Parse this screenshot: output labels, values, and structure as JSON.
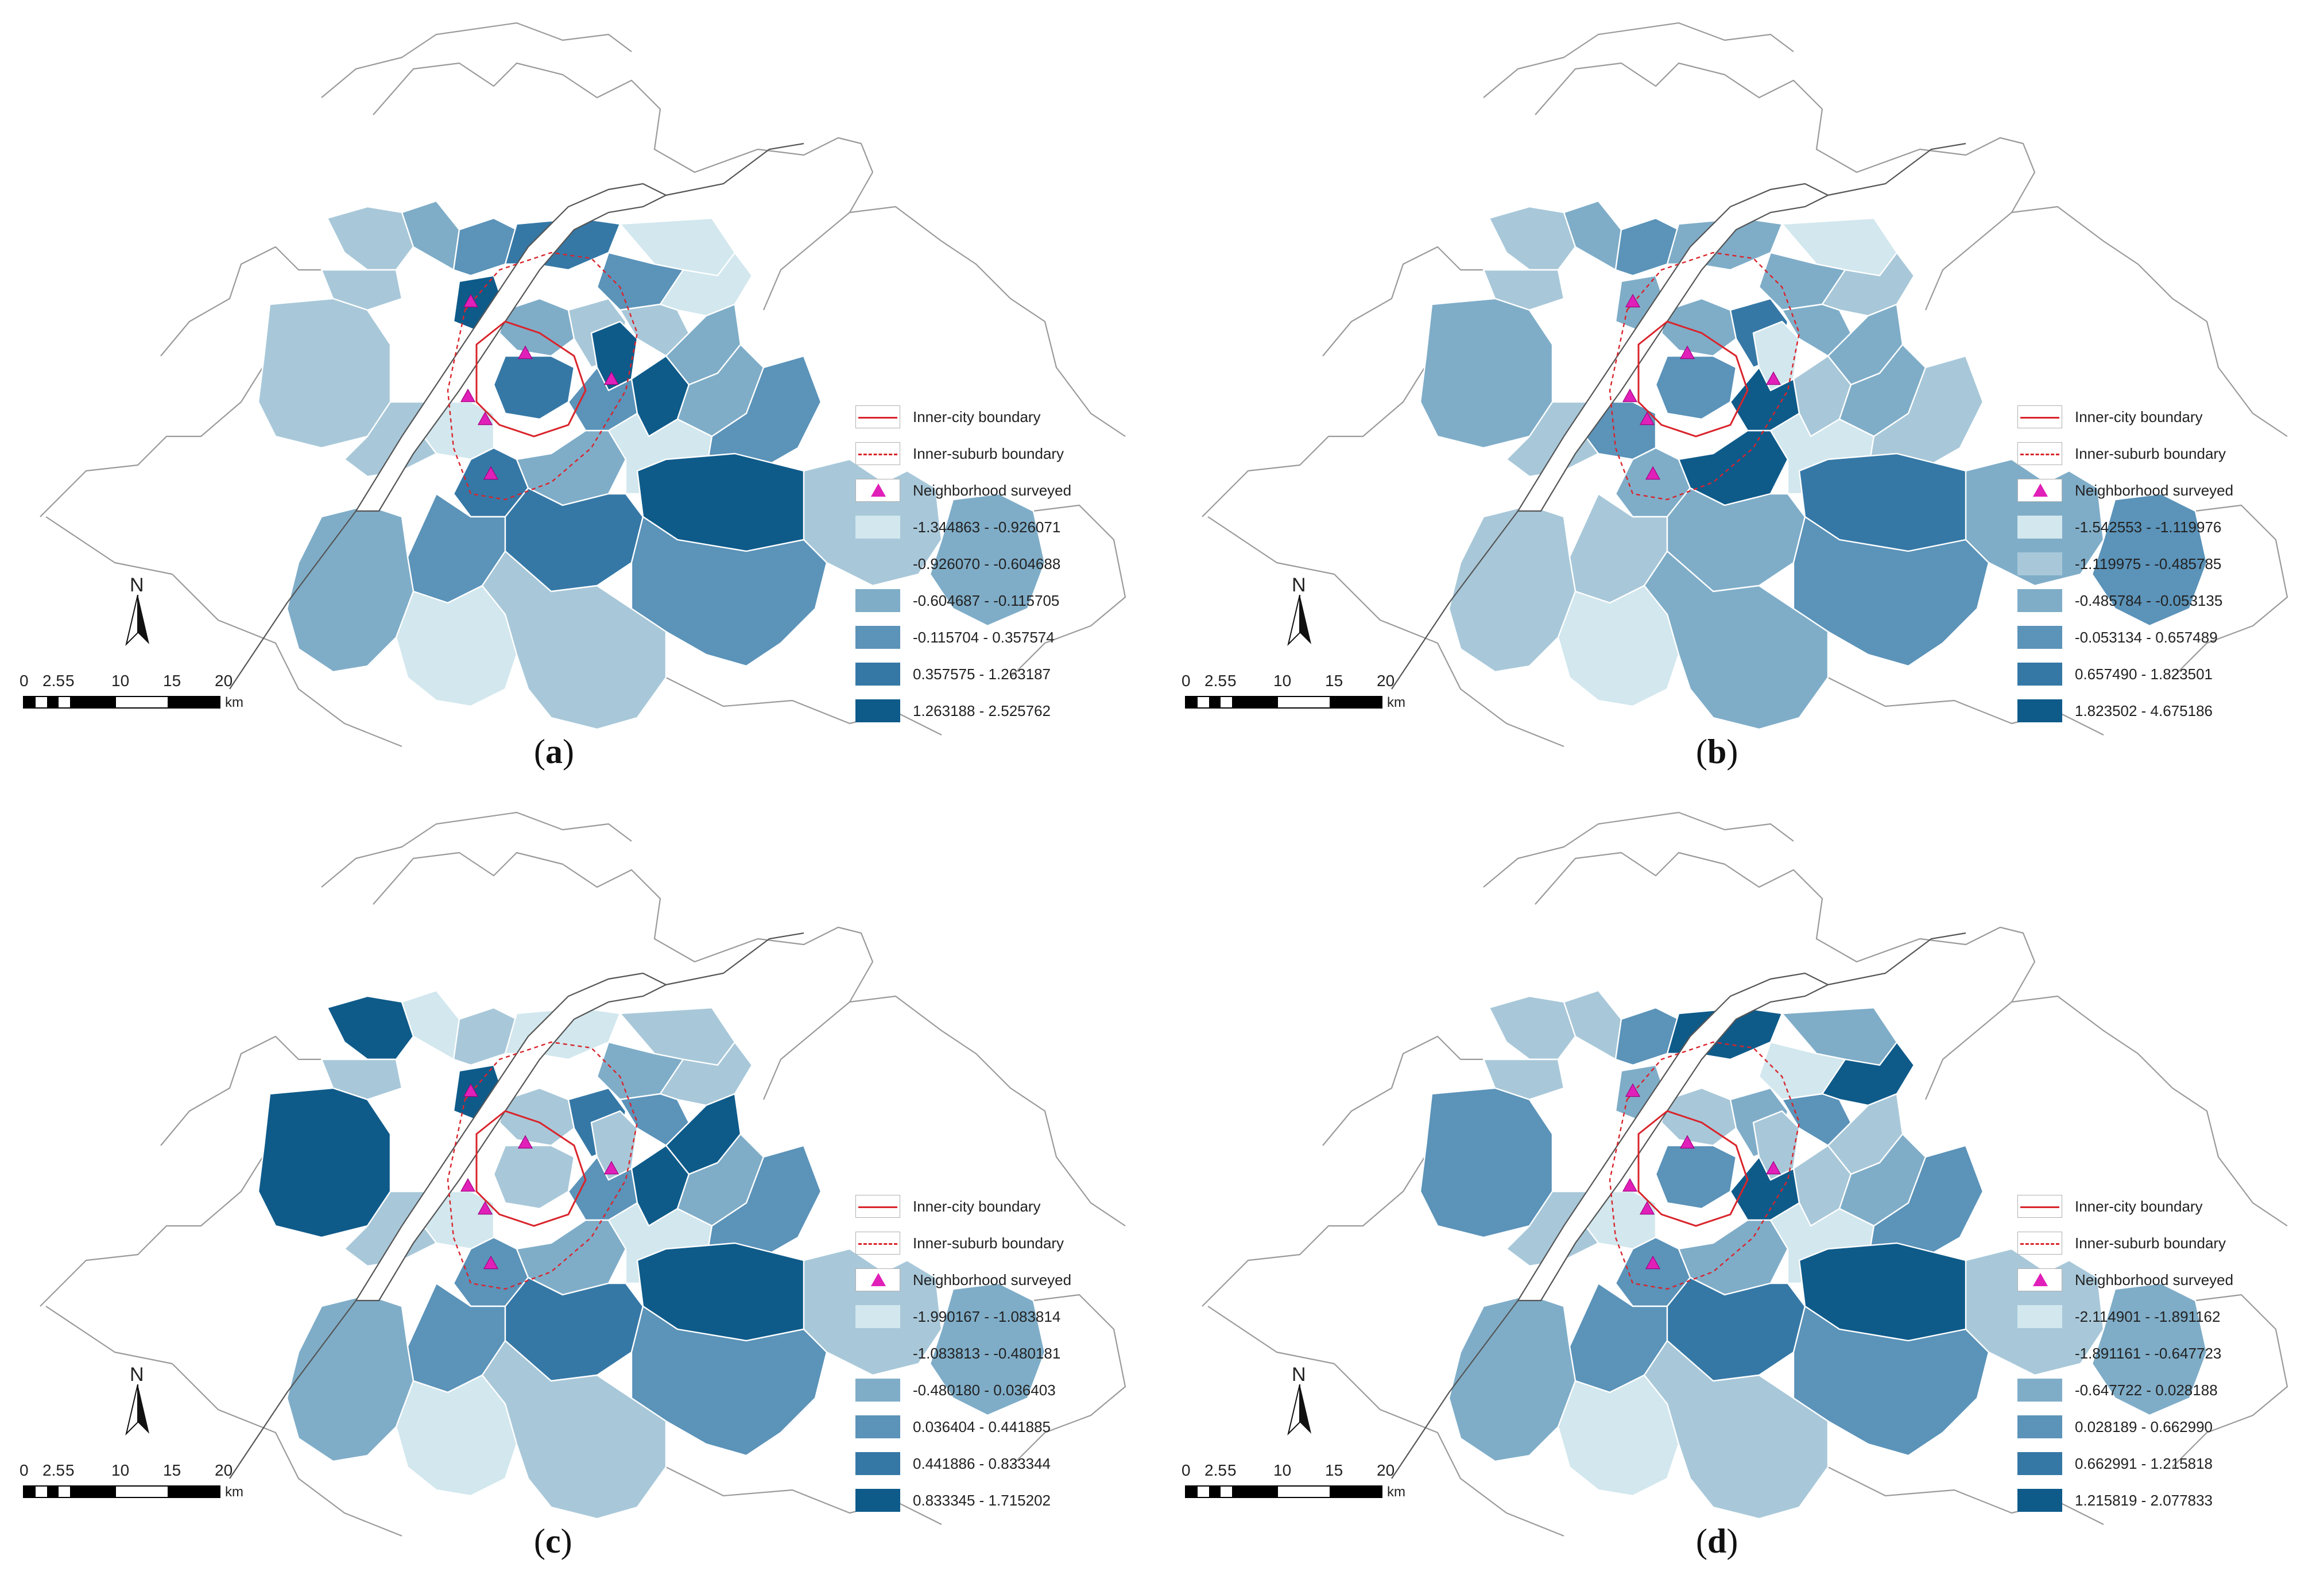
{
  "legend_common": {
    "inner_city": "Inner-city boundary",
    "inner_suburb": "Inner-suburb boundary",
    "surveyed": "Neighborhood surveyed"
  },
  "north_label": "N",
  "scale": {
    "ticks": [
      "0",
      "2.5",
      "5",
      "10",
      "15",
      "20"
    ],
    "unit": "km"
  },
  "colors": [
    "#d2e7ee",
    "#a8c8d9",
    "#7fadc8",
    "#5b93b9",
    "#3578a6",
    "#0e5b8a"
  ],
  "panels": [
    {
      "letter": "a",
      "classes": [
        "-1.344863 - -0.926071",
        "-0.926070 - -0.604688",
        "-0.604687 - -0.115705",
        "-0.115704 - 0.357574",
        "0.357575 - 1.263187",
        "1.263188 - 2.525762"
      ],
      "region_classes": [
        1,
        2,
        1,
        3,
        5,
        4,
        0,
        3,
        1,
        0,
        2,
        1,
        5,
        1,
        2,
        4,
        3,
        5,
        2,
        0,
        1,
        4,
        2,
        0,
        3,
        5,
        1,
        2,
        3,
        4,
        3,
        2,
        0,
        1
      ]
    },
    {
      "letter": "b",
      "classes": [
        "-1.542553 - -1.119976",
        "-1.119975 - -0.485785",
        "-0.485784 - -0.053135",
        "-0.053134 - 0.657489",
        "0.657490 - 1.823501",
        "1.823502 - 4.675186"
      ],
      "region_classes": [
        1,
        2,
        1,
        3,
        2,
        2,
        0,
        2,
        2,
        1,
        2,
        4,
        0,
        2,
        2,
        3,
        5,
        1,
        2,
        3,
        1,
        2,
        5,
        0,
        1,
        4,
        2,
        3,
        1,
        2,
        3,
        1,
        0,
        2
      ]
    },
    {
      "letter": "c",
      "classes": [
        "-1.990167 - -1.083814",
        "-1.083813 - -0.480181",
        "-0.480180 - 0.036403",
        "0.036404 - 0.441885",
        "0.441886 - 0.833344",
        "0.833345 - 1.715202"
      ],
      "region_classes": [
        5,
        0,
        1,
        1,
        5,
        0,
        1,
        2,
        5,
        1,
        1,
        4,
        1,
        3,
        5,
        1,
        3,
        5,
        2,
        0,
        1,
        3,
        2,
        0,
        3,
        5,
        1,
        2,
        3,
        4,
        3,
        2,
        0,
        1
      ]
    },
    {
      "letter": "d",
      "classes": [
        "-2.114901 - -1.891162",
        "-1.891161 - -0.647723",
        "-0.647722 - 0.028188",
        "0.028189 - 0.662990",
        "0.662991 - 1.215818",
        "1.215819 - 2.077833"
      ],
      "region_classes": [
        1,
        1,
        1,
        3,
        2,
        5,
        2,
        0,
        3,
        5,
        1,
        2,
        1,
        3,
        1,
        3,
        5,
        1,
        2,
        0,
        1,
        3,
        2,
        0,
        3,
        5,
        1,
        2,
        3,
        4,
        3,
        2,
        0,
        1
      ]
    }
  ]
}
